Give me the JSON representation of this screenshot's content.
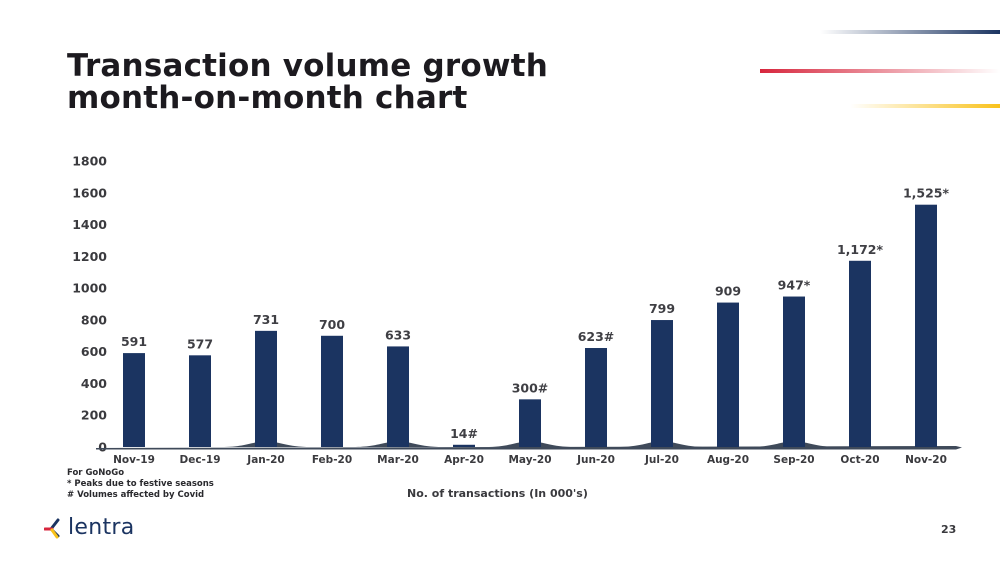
{
  "slide": {
    "title_line1": "Transaction volume growth",
    "title_line2": "month-on-month chart",
    "page_number": "23",
    "logo_text": "lentra",
    "footnotes": [
      "For GoNoGo",
      "* Peaks due to festive seasons",
      "# Volumes affected by Covid"
    ],
    "colors": {
      "bar": "#1b3461",
      "baseline": "#3f4a5a",
      "accent_navy": "#1b3461",
      "accent_red": "#d7263d",
      "accent_yellow": "#f9c21b"
    }
  },
  "chart_data": {
    "type": "bar",
    "title": "Transaction volume growth month-on-month chart",
    "xlabel": "No. of transactions (In 000's)",
    "ylabel": "",
    "ylim": [
      0,
      1800
    ],
    "yticks": [
      0,
      200,
      400,
      600,
      800,
      1000,
      1200,
      1400,
      1600,
      1800
    ],
    "grid": false,
    "legend": "none",
    "categories": [
      "Nov-19",
      "Dec-19",
      "Jan-20",
      "Feb-20",
      "Mar-20",
      "Apr-20",
      "May-20",
      "Jun-20",
      "Jul-20",
      "Aug-20",
      "Sep-20",
      "Oct-20",
      "Nov-20"
    ],
    "values": [
      591,
      577,
      731,
      700,
      633,
      14,
      300,
      623,
      799,
      909,
      947,
      1172,
      1525
    ],
    "data_labels": [
      "591",
      "577",
      "731",
      "700",
      "633",
      "14#",
      "300#",
      "623#",
      "799",
      "909",
      "947*",
      "1,172*",
      "1,525*"
    ],
    "annotations": {
      "*": "Peaks due to festive seasons",
      "#": "Volumes affected by Covid"
    }
  }
}
